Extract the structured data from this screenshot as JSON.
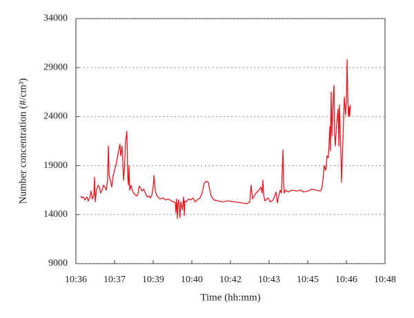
{
  "chart_data": {
    "type": "line",
    "x_label": "Time (hh:mm)",
    "y_label": "Number concentration (#/cm³)",
    "xlim": [
      636,
      648
    ],
    "xticks": [
      {
        "value": 636,
        "label": "10:36"
      },
      {
        "value": 637.5,
        "label": "10:37"
      },
      {
        "value": 639,
        "label": "10:39"
      },
      {
        "value": 640.5,
        "label": "10:40"
      },
      {
        "value": 642,
        "label": "10:42"
      },
      {
        "value": 643.5,
        "label": "10:43"
      },
      {
        "value": 645,
        "label": "10:45"
      },
      {
        "value": 646.5,
        "label": "10:46"
      },
      {
        "value": 648,
        "label": "10:48"
      }
    ],
    "ylim": [
      9000,
      34000
    ],
    "yticks": [
      9000,
      14000,
      19000,
      24000,
      29000,
      34000
    ],
    "grid": true,
    "series": [
      {
        "color": "#e8141c",
        "x": [
          636.19,
          636.24,
          636.29,
          636.35,
          636.43,
          636.48,
          636.54,
          636.59,
          636.64,
          636.7,
          636.72,
          636.75,
          636.8,
          636.86,
          636.91,
          636.96,
          637.02,
          637.07,
          637.13,
          637.18,
          637.23,
          637.26,
          637.29,
          637.34,
          637.39,
          637.45,
          637.5,
          637.55,
          637.61,
          637.66,
          637.71,
          637.74,
          637.79,
          637.82,
          637.85,
          637.88,
          637.93,
          637.98,
          638.01,
          638.04,
          638.06,
          638.09,
          638.14,
          638.2,
          638.25,
          638.3,
          638.36,
          638.41,
          638.46,
          638.52,
          638.57,
          638.63,
          638.68,
          638.73,
          638.79,
          638.84,
          638.89,
          638.95,
          639.0,
          639.03,
          639.08,
          639.13,
          639.19,
          639.27,
          639.38,
          639.48,
          639.59,
          639.7,
          639.8,
          639.86,
          639.88,
          639.91,
          639.94,
          639.96,
          639.99,
          640.04,
          640.07,
          640.13,
          640.18,
          640.21,
          640.23,
          640.29,
          640.37,
          640.45,
          640.55,
          640.63,
          640.71,
          640.82,
          640.9,
          640.98,
          641.06,
          641.14,
          641.2,
          641.25,
          641.36,
          641.52,
          641.68,
          641.89,
          642.16,
          642.43,
          642.64,
          642.75,
          642.8,
          642.86,
          642.96,
          643.07,
          643.18,
          643.23,
          643.26,
          643.29,
          643.34,
          643.45,
          643.55,
          643.66,
          643.77,
          643.82,
          643.88,
          643.93,
          643.98,
          644.04,
          644.06,
          644.09,
          644.14,
          644.25,
          644.3,
          644.41,
          644.57,
          644.73,
          644.84,
          645.0,
          645.16,
          645.32,
          645.48,
          645.54,
          645.59,
          645.64,
          645.7,
          645.75,
          645.8,
          645.86,
          645.88,
          645.91,
          645.94,
          645.99,
          646.02,
          646.04,
          646.07,
          646.13,
          646.18,
          646.21,
          646.23,
          646.29,
          646.31,
          646.34,
          646.39,
          646.42,
          646.45,
          646.47,
          646.5,
          646.53,
          646.55,
          646.58,
          646.61,
          646.63,
          646.66
        ],
        "values": [
          15900,
          15700,
          15800,
          15500,
          15800,
          15400,
          15700,
          16400,
          15600,
          16000,
          17800,
          15300,
          16500,
          17000,
          16800,
          16200,
          16500,
          17000,
          16800,
          16500,
          17500,
          21000,
          18000,
          17500,
          16800,
          18000,
          18500,
          19000,
          19800,
          20500,
          21200,
          20000,
          21000,
          19500,
          17500,
          18500,
          21500,
          22500,
          18000,
          17000,
          19000,
          16500,
          17000,
          16400,
          16200,
          16000,
          15900,
          16100,
          16900,
          16700,
          16400,
          16600,
          16300,
          16000,
          15800,
          15900,
          15700,
          16000,
          16800,
          18000,
          16500,
          16000,
          15800,
          15600,
          15700,
          15500,
          15600,
          15400,
          15300,
          15200,
          14200,
          15600,
          13600,
          15000,
          15500,
          13700,
          15300,
          14500,
          15800,
          13900,
          15400,
          15300,
          15600,
          15500,
          15700,
          15300,
          15500,
          15700,
          16200,
          17200,
          17400,
          17300,
          16500,
          15900,
          15500,
          15400,
          15300,
          15400,
          15300,
          15200,
          15100,
          15300,
          17000,
          15600,
          16100,
          16400,
          16800,
          16200,
          17500,
          16000,
          15400,
          15700,
          15300,
          15500,
          16300,
          15200,
          16000,
          16500,
          16200,
          20600,
          17500,
          16200,
          16500,
          16300,
          16400,
          16500,
          16400,
          16500,
          16300,
          16400,
          16600,
          16500,
          16400,
          16600,
          17500,
          19000,
          18500,
          20000,
          19800,
          23000,
          20500,
          26500,
          22000,
          26000,
          27200,
          22500,
          21000,
          23500,
          24800,
          21000,
          25200,
          20000,
          17300,
          19500,
          23500,
          26000,
          25000,
          24200,
          25500,
          29800,
          26500,
          24000,
          25000,
          24000,
          25200
        ]
      }
    ]
  }
}
